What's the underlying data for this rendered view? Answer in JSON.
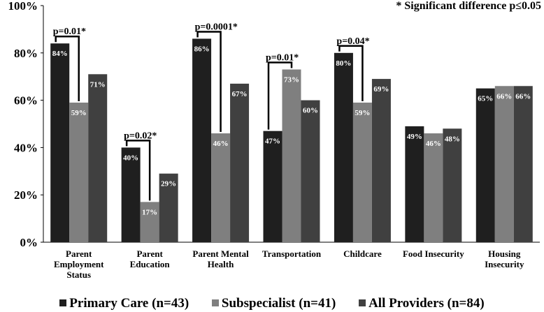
{
  "chart_data": {
    "type": "bar",
    "title": "",
    "note": "* Significant difference p≤0.05",
    "xlabel": "",
    "ylabel": "",
    "ylim": [
      0,
      100
    ],
    "yticks": [
      "0%",
      "20%",
      "40%",
      "60%",
      "80%",
      "100%"
    ],
    "grid": false,
    "legend_position": "bottom",
    "categories": [
      "Parent Employment Status",
      "Parent Education",
      "Parent Mental Health",
      "Transportation",
      "Childcare",
      "Food Insecurity",
      "Housing Insecurity"
    ],
    "category_lines": [
      [
        "Parent",
        "Employment",
        "Status"
      ],
      [
        "Parent",
        "Education"
      ],
      [
        "Parent Mental",
        "Health"
      ],
      [
        "Transportation"
      ],
      [
        "Childcare"
      ],
      [
        "Food Insecurity"
      ],
      [
        "Housing",
        "Insecurity"
      ]
    ],
    "series": [
      {
        "name": "Primary Care (n=43)",
        "color": "#1f1f1f",
        "values": [
          84,
          40,
          86,
          47,
          80,
          49,
          65
        ],
        "labels": [
          "84%",
          "40%",
          "86%",
          "47%",
          "80%",
          "49%",
          "65%"
        ]
      },
      {
        "name": "Subspecialist (n=41)",
        "color": "#7f7f7f",
        "values": [
          59,
          17,
          46,
          73,
          59,
          46,
          66
        ],
        "labels": [
          "59%",
          "17%",
          "46%",
          "73%",
          "59%",
          "46%",
          "66%"
        ]
      },
      {
        "name": "All Providers (n=84)",
        "color": "#404040",
        "values": [
          71,
          29,
          67,
          60,
          69,
          48,
          66
        ],
        "labels": [
          "71%",
          "29%",
          "67%",
          "60%",
          "69%",
          "48%",
          "66%"
        ]
      }
    ],
    "annotations": [
      {
        "category_index": 0,
        "label": "p=0.01*"
      },
      {
        "category_index": 1,
        "label": "p=0.02*"
      },
      {
        "category_index": 2,
        "label": "p=0.0001*"
      },
      {
        "category_index": 3,
        "label": "p=0.01*"
      },
      {
        "category_index": 4,
        "label": "p=0.04*"
      }
    ]
  }
}
